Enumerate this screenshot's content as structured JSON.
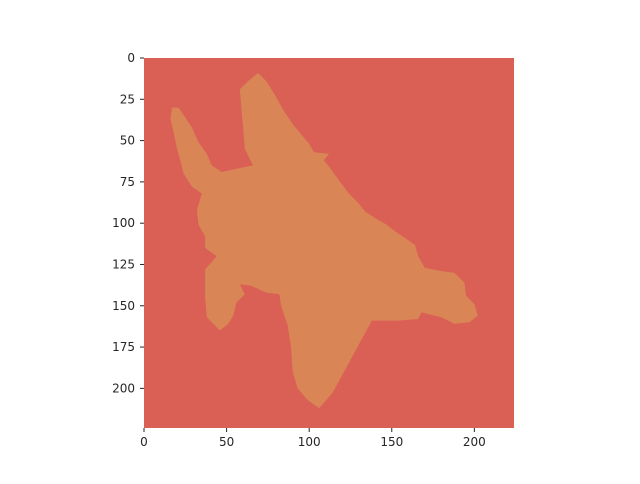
{
  "chart_data": {
    "type": "heatmap",
    "title": "",
    "xlabel": "",
    "ylabel": "",
    "width": 224,
    "height": 224,
    "xlim": [
      0,
      224
    ],
    "ylim": [
      224,
      0
    ],
    "y_inverted": true,
    "grid": false,
    "legend": "none",
    "xticks": [
      0,
      50,
      100,
      150,
      200
    ],
    "yticks": [
      0,
      25,
      50,
      75,
      100,
      125,
      150,
      175,
      200
    ],
    "classes": [
      {
        "label": "background",
        "color": "#da5f55"
      },
      {
        "label": "object",
        "color": "#d98556"
      }
    ],
    "object_outline": [
      [
        69,
        9
      ],
      [
        74,
        14
      ],
      [
        79,
        22
      ],
      [
        84,
        31
      ],
      [
        90,
        40
      ],
      [
        95,
        46
      ],
      [
        100,
        52
      ],
      [
        103,
        57
      ],
      [
        112,
        58
      ],
      [
        109,
        62
      ],
      [
        113,
        67
      ],
      [
        118,
        74
      ],
      [
        124,
        82
      ],
      [
        130,
        88
      ],
      [
        134,
        93
      ],
      [
        140,
        97
      ],
      [
        147,
        101
      ],
      [
        152,
        105
      ],
      [
        158,
        109
      ],
      [
        164,
        113
      ],
      [
        166,
        120
      ],
      [
        170,
        127
      ],
      [
        180,
        129
      ],
      [
        188,
        130
      ],
      [
        194,
        136
      ],
      [
        195,
        144
      ],
      [
        200,
        149
      ],
      [
        202,
        156
      ],
      [
        197,
        160
      ],
      [
        188,
        161
      ],
      [
        180,
        157
      ],
      [
        168,
        154
      ],
      [
        166,
        158
      ],
      [
        154,
        159
      ],
      [
        138,
        159
      ],
      [
        132,
        170
      ],
      [
        126,
        181
      ],
      [
        120,
        192
      ],
      [
        114,
        203
      ],
      [
        106,
        212
      ],
      [
        99,
        207
      ],
      [
        93,
        200
      ],
      [
        90,
        190
      ],
      [
        89,
        175
      ],
      [
        87,
        162
      ],
      [
        83,
        150
      ],
      [
        82,
        143
      ],
      [
        74,
        142
      ],
      [
        65,
        138
      ],
      [
        58,
        137
      ],
      [
        61,
        143
      ],
      [
        56,
        148
      ],
      [
        54,
        156
      ],
      [
        51,
        161
      ],
      [
        46,
        165
      ],
      [
        38,
        157
      ],
      [
        37,
        145
      ],
      [
        37,
        128
      ],
      [
        44,
        120
      ],
      [
        37,
        115
      ],
      [
        37,
        108
      ],
      [
        33,
        101
      ],
      [
        32,
        92
      ],
      [
        35,
        82
      ],
      [
        29,
        78
      ],
      [
        24,
        70
      ],
      [
        22,
        62
      ],
      [
        20,
        55
      ],
      [
        18,
        45
      ],
      [
        16,
        37
      ],
      [
        17,
        30
      ],
      [
        21,
        30
      ],
      [
        29,
        42
      ],
      [
        33,
        51
      ],
      [
        38,
        58
      ],
      [
        41,
        65
      ],
      [
        47,
        69
      ],
      [
        56,
        67
      ],
      [
        66,
        65
      ],
      [
        61,
        55
      ],
      [
        60,
        42
      ],
      [
        59,
        31
      ],
      [
        58,
        19
      ],
      [
        63,
        14
      ]
    ]
  }
}
